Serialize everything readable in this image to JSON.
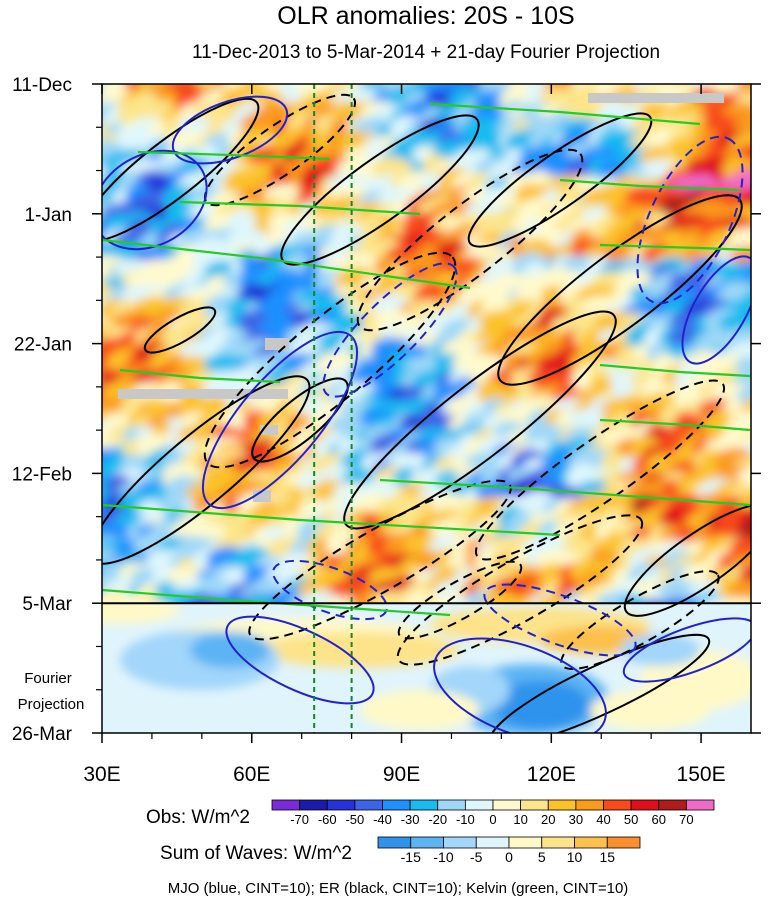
{
  "chart_data": {
    "type": "heatmap",
    "title": "OLR anomalies: 20S - 10S",
    "subtitle": "11-Dec-2013 to 5-Mar-2014 + 21-day Fourier Projection",
    "x_axis": {
      "range": [
        30,
        160
      ],
      "ticks": [
        30,
        60,
        90,
        120,
        150
      ],
      "tick_labels": [
        "30E",
        "60E",
        "90E",
        "120E",
        "150E"
      ]
    },
    "y_axis": {
      "range_days": [
        0,
        105
      ],
      "ticks_days": [
        0,
        21,
        42,
        63,
        84,
        105
      ],
      "tick_labels": [
        "11-Dec",
        "1-Jan",
        "22-Jan",
        "12-Feb",
        "5-Mar",
        "26-Mar"
      ],
      "reversed": true
    },
    "forecast_start_day": 84,
    "forecast_label": [
      "Fourier",
      "Projection"
    ],
    "reference_longitudes": [
      72.5,
      80
    ],
    "obs_colorbar": {
      "label": "Obs: W/m^2",
      "levels": [
        -70,
        -60,
        -50,
        -40,
        -30,
        -20,
        -10,
        0,
        10,
        20,
        30,
        40,
        50,
        60,
        70
      ],
      "colors": [
        "#7b2ad8",
        "#1c1aa8",
        "#2432d8",
        "#3c64e6",
        "#1e90ff",
        "#18bcf0",
        "#9ed8f8",
        "#dff7fc",
        "#fffacd",
        "#fde58a",
        "#fcc229",
        "#fb9a1c",
        "#f84a1a",
        "#e0101a",
        "#b01c1c",
        "#f06ac8"
      ]
    },
    "waves_colorbar": {
      "label": "Sum of Waves: W/m^2",
      "levels": [
        -15,
        -10,
        -5,
        0,
        5,
        10,
        15
      ],
      "colors": [
        "#2f93ec",
        "#5cb4f4",
        "#a2d6fa",
        "#e0f4fc",
        "#fff9c8",
        "#fde38a",
        "#fcc04c",
        "#fb8f2c"
      ]
    },
    "contour_legend": "MJO (blue, CINT=10); ER (black, CINT=10); Kelvin (green, CINT=10)",
    "series": [
      {
        "name": "MJO",
        "color": "#2222cc",
        "cint": 10
      },
      {
        "name": "ER",
        "color": "#000000",
        "cint": 10
      },
      {
        "name": "Kelvin",
        "color": "#22cc22",
        "cint": 10
      }
    ]
  }
}
